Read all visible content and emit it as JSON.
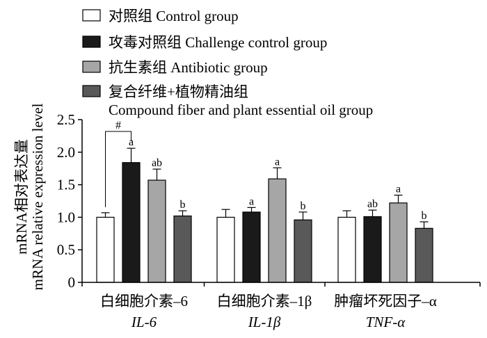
{
  "chart_data": {
    "type": "bar",
    "title": "",
    "ylabel": {
      "zh": "mRNA相对表达量",
      "en": "mRNA relative expression level"
    },
    "xlabel": "",
    "ylim": [
      0,
      2.5
    ],
    "yticks": [
      "0",
      "0.5",
      "1.0",
      "1.5",
      "2.0",
      "2.5"
    ],
    "ytick_values": [
      0,
      0.5,
      1.0,
      1.5,
      2.0,
      2.5
    ],
    "grid": false,
    "legend_position": "top",
    "categories": [
      {
        "zh": "白细胞介素–6",
        "en": "IL-6"
      },
      {
        "zh": "白细胞介素–1β",
        "en": "IL-1β"
      },
      {
        "zh": "肿瘤坏死因子–α",
        "en": "TNF-α"
      }
    ],
    "series": [
      {
        "name": "对照组 Control group",
        "color": "#ffffff",
        "values": [
          1.0,
          1.0,
          1.0
        ],
        "errors": [
          0.07,
          0.12,
          0.1
        ],
        "labels": [
          "",
          "",
          ""
        ]
      },
      {
        "name": "攻毒对照组 Challenge control group",
        "color": "#1a1a1a",
        "values": [
          1.84,
          1.08,
          1.01
        ],
        "errors": [
          0.22,
          0.07,
          0.1
        ],
        "labels": [
          "a",
          "a",
          "ab"
        ]
      },
      {
        "name": "抗生素组 Antibiotic group",
        "color": "#a6a6a6",
        "values": [
          1.57,
          1.59,
          1.22
        ],
        "errors": [
          0.17,
          0.17,
          0.12
        ],
        "labels": [
          "ab",
          "a",
          "a"
        ]
      },
      {
        "name": "复合纤维+植物精油组 Compound fiber and plant essential oil group",
        "name_lines": [
          "复合纤维+植物精油组",
          "Compound fiber and plant essential oil group"
        ],
        "color": "#595959",
        "values": [
          1.02,
          0.96,
          0.83
        ],
        "errors": [
          0.08,
          0.12,
          0.1
        ],
        "labels": [
          "b",
          "b",
          "b"
        ]
      }
    ],
    "annotations": [
      {
        "text": "#",
        "between": [
          "对照组 Control group",
          "攻毒对照组 Challenge control group"
        ],
        "category": "IL-6"
      }
    ]
  }
}
